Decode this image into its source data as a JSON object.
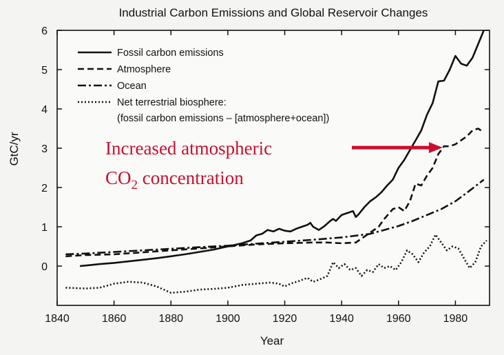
{
  "chart_data": {
    "type": "line",
    "title": "Industrial Carbon Emissions and Global Reservoir Changes",
    "xlabel": "Year",
    "ylabel": "GtC/yr",
    "xlim": [
      1840,
      1992
    ],
    "ylim": [
      -1,
      6
    ],
    "xticks": [
      1840,
      1860,
      1880,
      1900,
      1920,
      1940,
      1960,
      1980
    ],
    "yticks": [
      0,
      1,
      2,
      3,
      4,
      5,
      6
    ],
    "grid": false,
    "legend_position": "top-left",
    "legend_note": "(fossil carbon emissions – [atmosphere+ocean])",
    "series": [
      {
        "name": "Fossil carbon emissions",
        "style": "solid",
        "points": [
          [
            1848,
            0.0
          ],
          [
            1855,
            0.05
          ],
          [
            1860,
            0.08
          ],
          [
            1865,
            0.12
          ],
          [
            1870,
            0.16
          ],
          [
            1875,
            0.2
          ],
          [
            1880,
            0.25
          ],
          [
            1885,
            0.3
          ],
          [
            1890,
            0.36
          ],
          [
            1895,
            0.42
          ],
          [
            1900,
            0.5
          ],
          [
            1905,
            0.58
          ],
          [
            1908,
            0.65
          ],
          [
            1910,
            0.78
          ],
          [
            1912,
            0.82
          ],
          [
            1914,
            0.92
          ],
          [
            1916,
            0.88
          ],
          [
            1918,
            0.95
          ],
          [
            1920,
            0.9
          ],
          [
            1922,
            0.88
          ],
          [
            1924,
            0.95
          ],
          [
            1926,
            1.0
          ],
          [
            1928,
            1.05
          ],
          [
            1929,
            1.1
          ],
          [
            1930,
            1.0
          ],
          [
            1932,
            0.92
          ],
          [
            1934,
            1.02
          ],
          [
            1936,
            1.15
          ],
          [
            1937,
            1.2
          ],
          [
            1938,
            1.15
          ],
          [
            1940,
            1.3
          ],
          [
            1942,
            1.35
          ],
          [
            1944,
            1.4
          ],
          [
            1945,
            1.25
          ],
          [
            1946,
            1.32
          ],
          [
            1948,
            1.5
          ],
          [
            1950,
            1.65
          ],
          [
            1952,
            1.75
          ],
          [
            1954,
            1.88
          ],
          [
            1956,
            2.05
          ],
          [
            1958,
            2.2
          ],
          [
            1960,
            2.5
          ],
          [
            1962,
            2.7
          ],
          [
            1964,
            2.95
          ],
          [
            1966,
            3.2
          ],
          [
            1968,
            3.45
          ],
          [
            1970,
            3.85
          ],
          [
            1972,
            4.15
          ],
          [
            1974,
            4.7
          ],
          [
            1976,
            4.72
          ],
          [
            1978,
            5.0
          ],
          [
            1980,
            5.35
          ],
          [
            1982,
            5.15
          ],
          [
            1984,
            5.1
          ],
          [
            1986,
            5.3
          ],
          [
            1988,
            5.65
          ],
          [
            1990,
            6.0
          ]
        ]
      },
      {
        "name": "Atmosphere",
        "style": "dashed",
        "points": [
          [
            1843,
            0.25
          ],
          [
            1850,
            0.28
          ],
          [
            1860,
            0.3
          ],
          [
            1870,
            0.35
          ],
          [
            1880,
            0.4
          ],
          [
            1890,
            0.45
          ],
          [
            1900,
            0.5
          ],
          [
            1910,
            0.55
          ],
          [
            1920,
            0.58
          ],
          [
            1930,
            0.6
          ],
          [
            1935,
            0.6
          ],
          [
            1940,
            0.58
          ],
          [
            1945,
            0.6
          ],
          [
            1948,
            0.75
          ],
          [
            1950,
            0.85
          ],
          [
            1953,
            1.0
          ],
          [
            1955,
            1.2
          ],
          [
            1958,
            1.45
          ],
          [
            1960,
            1.5
          ],
          [
            1962,
            1.4
          ],
          [
            1964,
            1.65
          ],
          [
            1966,
            2.1
          ],
          [
            1968,
            2.05
          ],
          [
            1970,
            2.3
          ],
          [
            1972,
            2.5
          ],
          [
            1974,
            2.85
          ],
          [
            1976,
            3.05
          ],
          [
            1978,
            3.05
          ],
          [
            1980,
            3.1
          ],
          [
            1982,
            3.2
          ],
          [
            1984,
            3.3
          ],
          [
            1986,
            3.45
          ],
          [
            1988,
            3.5
          ],
          [
            1990,
            3.4
          ]
        ]
      },
      {
        "name": "Ocean",
        "style": "dash-dot",
        "points": [
          [
            1843,
            0.3
          ],
          [
            1850,
            0.32
          ],
          [
            1860,
            0.36
          ],
          [
            1870,
            0.4
          ],
          [
            1880,
            0.44
          ],
          [
            1890,
            0.48
          ],
          [
            1900,
            0.52
          ],
          [
            1910,
            0.57
          ],
          [
            1920,
            0.62
          ],
          [
            1930,
            0.67
          ],
          [
            1940,
            0.73
          ],
          [
            1950,
            0.82
          ],
          [
            1955,
            0.92
          ],
          [
            1960,
            1.02
          ],
          [
            1965,
            1.15
          ],
          [
            1970,
            1.3
          ],
          [
            1975,
            1.45
          ],
          [
            1980,
            1.65
          ],
          [
            1985,
            1.92
          ],
          [
            1990,
            2.2
          ]
        ]
      },
      {
        "name": "Net terrestrial biosphere:",
        "style": "dotted",
        "points": [
          [
            1843,
            -0.55
          ],
          [
            1850,
            -0.57
          ],
          [
            1855,
            -0.55
          ],
          [
            1860,
            -0.45
          ],
          [
            1865,
            -0.4
          ],
          [
            1870,
            -0.42
          ],
          [
            1875,
            -0.52
          ],
          [
            1880,
            -0.68
          ],
          [
            1885,
            -0.65
          ],
          [
            1890,
            -0.6
          ],
          [
            1895,
            -0.58
          ],
          [
            1900,
            -0.55
          ],
          [
            1905,
            -0.48
          ],
          [
            1910,
            -0.45
          ],
          [
            1915,
            -0.42
          ],
          [
            1918,
            -0.45
          ],
          [
            1920,
            -0.52
          ],
          [
            1922,
            -0.45
          ],
          [
            1925,
            -0.38
          ],
          [
            1928,
            -0.3
          ],
          [
            1930,
            -0.4
          ],
          [
            1932,
            -0.35
          ],
          [
            1935,
            -0.25
          ],
          [
            1937,
            0.1
          ],
          [
            1939,
            -0.05
          ],
          [
            1941,
            0.05
          ],
          [
            1943,
            -0.1
          ],
          [
            1945,
            -0.05
          ],
          [
            1947,
            -0.25
          ],
          [
            1949,
            -0.1
          ],
          [
            1951,
            -0.15
          ],
          [
            1953,
            0.05
          ],
          [
            1955,
            -0.05
          ],
          [
            1957,
            0.0
          ],
          [
            1959,
            -0.1
          ],
          [
            1961,
            0.1
          ],
          [
            1963,
            0.4
          ],
          [
            1965,
            0.3
          ],
          [
            1967,
            0.1
          ],
          [
            1969,
            0.35
          ],
          [
            1971,
            0.5
          ],
          [
            1973,
            0.8
          ],
          [
            1975,
            0.6
          ],
          [
            1977,
            0.4
          ],
          [
            1979,
            0.5
          ],
          [
            1981,
            0.45
          ],
          [
            1983,
            0.2
          ],
          [
            1985,
            -0.05
          ],
          [
            1987,
            0.1
          ],
          [
            1989,
            0.5
          ],
          [
            1991,
            0.65
          ]
        ]
      }
    ],
    "annotation": {
      "line1": "Increased atmospheric",
      "line2_prefix": "CO",
      "line2_sub": "2",
      "line2_suffix": " concentration",
      "arrow_to": [
        1976,
        3.05
      ],
      "color": "#c8102e"
    }
  }
}
